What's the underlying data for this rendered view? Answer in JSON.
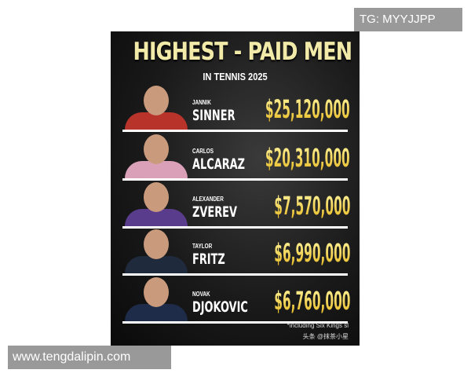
{
  "title": "HIGHEST - PAID MEN",
  "subtitle": "IN TENNIS 2025",
  "players": [
    {
      "first": "JANNIK",
      "last": "SINNER",
      "amount": "$25,120,000",
      "shirt": "#b8342a"
    },
    {
      "first": "CARLOS",
      "last": "ALCARAZ",
      "amount": "$20,310,000",
      "shirt": "#d9a0b8"
    },
    {
      "first": "ALEXANDER",
      "last": "ZVEREV",
      "amount": "$7,570,000",
      "shirt": "#5a3c8c"
    },
    {
      "first": "TAYLOR",
      "last": "FRITZ",
      "amount": "$6,990,000",
      "shirt": "#1f2a3c"
    },
    {
      "first": "NOVAK",
      "last": "DJOKOVIC",
      "amount": "$6,760,000",
      "shirt": "#1e2c4a"
    }
  ],
  "footnote": "*including Six Kings sl",
  "source_watermark": "头条 @抹茶小星",
  "overlay_tg": "TG: MYYJJPP",
  "overlay_site": "www.tengdalipin.com"
}
